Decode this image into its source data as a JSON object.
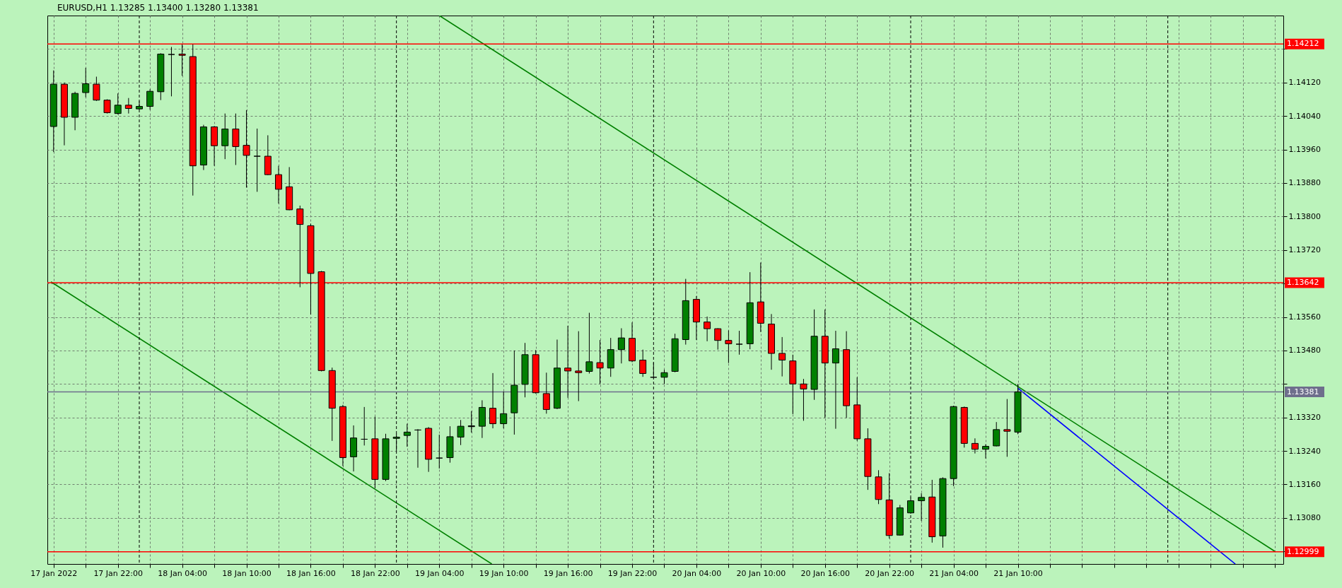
{
  "chart_data": {
    "type": "candlestick",
    "title": "EURUSD,H1  1.13285 1.13400 1.13280 1.13381",
    "x": [
      "2022-01-17T16:00",
      "2022-01-17T17:00",
      "2022-01-17T18:00",
      "2022-01-17T19:00",
      "2022-01-17T20:00",
      "2022-01-17T21:00",
      "2022-01-17T22:00",
      "2022-01-17T23:00",
      "2022-01-18T00:00",
      "2022-01-18T01:00",
      "2022-01-18T02:00",
      "2022-01-18T03:00",
      "2022-01-18T04:00",
      "2022-01-18T05:00",
      "2022-01-18T06:00",
      "2022-01-18T07:00",
      "2022-01-18T08:00",
      "2022-01-18T09:00",
      "2022-01-18T10:00",
      "2022-01-18T11:00",
      "2022-01-18T12:00",
      "2022-01-18T13:00",
      "2022-01-18T14:00",
      "2022-01-18T15:00",
      "2022-01-18T16:00",
      "2022-01-18T17:00",
      "2022-01-18T18:00",
      "2022-01-18T19:00",
      "2022-01-18T20:00",
      "2022-01-18T21:00",
      "2022-01-18T22:00",
      "2022-01-18T23:00",
      "2022-01-19T00:00",
      "2022-01-19T01:00",
      "2022-01-19T02:00",
      "2022-01-19T03:00",
      "2022-01-19T04:00",
      "2022-01-19T05:00",
      "2022-01-19T06:00",
      "2022-01-19T07:00",
      "2022-01-19T08:00",
      "2022-01-19T09:00",
      "2022-01-19T10:00",
      "2022-01-19T11:00",
      "2022-01-19T12:00",
      "2022-01-19T13:00",
      "2022-01-19T14:00",
      "2022-01-19T15:00",
      "2022-01-19T16:00",
      "2022-01-19T17:00",
      "2022-01-19T18:00",
      "2022-01-19T19:00",
      "2022-01-19T20:00",
      "2022-01-19T21:00",
      "2022-01-19T22:00",
      "2022-01-19T23:00",
      "2022-01-20T00:00",
      "2022-01-20T01:00",
      "2022-01-20T02:00",
      "2022-01-20T03:00",
      "2022-01-20T04:00",
      "2022-01-20T05:00",
      "2022-01-20T06:00",
      "2022-01-20T07:00",
      "2022-01-20T08:00",
      "2022-01-20T09:00",
      "2022-01-20T10:00",
      "2022-01-20T11:00",
      "2022-01-20T12:00",
      "2022-01-20T13:00",
      "2022-01-20T14:00",
      "2022-01-20T15:00",
      "2022-01-20T16:00",
      "2022-01-20T17:00",
      "2022-01-20T18:00",
      "2022-01-20T19:00",
      "2022-01-20T20:00",
      "2022-01-20T21:00",
      "2022-01-20T22:00",
      "2022-01-20T23:00",
      "2022-01-21T00:00",
      "2022-01-21T01:00",
      "2022-01-21T02:00",
      "2022-01-21T03:00",
      "2022-01-21T04:00",
      "2022-01-21T05:00",
      "2022-01-21T06:00",
      "2022-01-21T07:00",
      "2022-01-21T08:00",
      "2022-01-21T09:00",
      "2022-01-21T10:00"
    ],
    "ohlc": [
      [
        1.14015,
        1.14149,
        1.13954,
        1.14116
      ],
      [
        1.14116,
        1.1412,
        1.1397,
        1.14037
      ],
      [
        1.14037,
        1.14098,
        1.14006,
        1.14094
      ],
      [
        1.14096,
        1.14155,
        1.14085,
        1.14117
      ],
      [
        1.14116,
        1.14134,
        1.14076,
        1.14078
      ],
      [
        1.14078,
        1.1408,
        1.14046,
        1.14048
      ],
      [
        1.14046,
        1.14094,
        1.14044,
        1.14066
      ],
      [
        1.14066,
        1.14083,
        1.14046,
        1.14058
      ],
      [
        1.14057,
        1.14075,
        1.14055,
        1.14063
      ],
      [
        1.14063,
        1.14104,
        1.14055,
        1.14099
      ],
      [
        1.14098,
        1.1419,
        1.14078,
        1.14188
      ],
      [
        1.14187,
        1.14205,
        1.14087,
        1.14187
      ],
      [
        1.14188,
        1.14211,
        1.14136,
        1.14185
      ],
      [
        1.14182,
        1.14211,
        1.1385,
        1.13921
      ],
      [
        1.13923,
        1.14019,
        1.13911,
        1.14014
      ],
      [
        1.14014,
        1.14016,
        1.13921,
        1.13969
      ],
      [
        1.13969,
        1.14046,
        1.13937,
        1.14009
      ],
      [
        1.14009,
        1.14046,
        1.13923,
        1.13967
      ],
      [
        1.1397,
        1.14054,
        1.13869,
        1.13946
      ],
      [
        1.13944,
        1.1401,
        1.13859,
        1.13944
      ],
      [
        1.13944,
        1.13994,
        1.13899,
        1.139
      ],
      [
        1.139,
        1.13921,
        1.13831,
        1.13865
      ],
      [
        1.13871,
        1.13918,
        1.13815,
        1.13816
      ],
      [
        1.13818,
        1.13826,
        1.13631,
        1.13781
      ],
      [
        1.13778,
        1.13783,
        1.13566,
        1.13664
      ],
      [
        1.13668,
        1.1367,
        1.1343,
        1.13432
      ],
      [
        1.13432,
        1.13439,
        1.13264,
        1.13342
      ],
      [
        1.13346,
        1.1335,
        1.13204,
        1.13224
      ],
      [
        1.13226,
        1.13301,
        1.13191,
        1.13271
      ],
      [
        1.13268,
        1.13345,
        1.13253,
        1.13268
      ],
      [
        1.13269,
        1.13322,
        1.13151,
        1.13172
      ],
      [
        1.13172,
        1.13281,
        1.13168,
        1.13269
      ],
      [
        1.1327,
        1.13281,
        1.1324,
        1.13273
      ],
      [
        1.13277,
        1.13305,
        1.1325,
        1.13285
      ],
      [
        1.1329,
        1.13292,
        1.132,
        1.1329
      ],
      [
        1.13294,
        1.13297,
        1.1319,
        1.1322
      ],
      [
        1.13223,
        1.13279,
        1.13198,
        1.13223
      ],
      [
        1.13224,
        1.13299,
        1.13212,
        1.13274
      ],
      [
        1.13273,
        1.13314,
        1.13254,
        1.13299
      ],
      [
        1.13298,
        1.13335,
        1.13284,
        1.133
      ],
      [
        1.13299,
        1.13361,
        1.13271,
        1.13344
      ],
      [
        1.13342,
        1.13426,
        1.13294,
        1.13305
      ],
      [
        1.13305,
        1.13382,
        1.13294,
        1.13329
      ],
      [
        1.13331,
        1.1348,
        1.13279,
        1.13397
      ],
      [
        1.13399,
        1.13498,
        1.13368,
        1.1347
      ],
      [
        1.1347,
        1.13481,
        1.13377,
        1.13379
      ],
      [
        1.13377,
        1.13427,
        1.13329,
        1.13339
      ],
      [
        1.13342,
        1.13506,
        1.1334,
        1.13438
      ],
      [
        1.13438,
        1.13539,
        1.13367,
        1.13431
      ],
      [
        1.13431,
        1.13526,
        1.13359,
        1.13427
      ],
      [
        1.1343,
        1.1357,
        1.13425,
        1.13453
      ],
      [
        1.13451,
        1.13505,
        1.134,
        1.13438
      ],
      [
        1.13438,
        1.1351,
        1.13417,
        1.13482
      ],
      [
        1.13482,
        1.13533,
        1.13449,
        1.1351
      ],
      [
        1.13509,
        1.13547,
        1.13452,
        1.13455
      ],
      [
        1.13457,
        1.13482,
        1.13417,
        1.13425
      ],
      [
        1.13416,
        1.13451,
        1.13415,
        1.13416
      ],
      [
        1.13416,
        1.13434,
        1.134,
        1.13427
      ],
      [
        1.1343,
        1.1352,
        1.13428,
        1.13508
      ],
      [
        1.13506,
        1.13651,
        1.13494,
        1.13599
      ],
      [
        1.13602,
        1.1361,
        1.13505,
        1.13548
      ],
      [
        1.13548,
        1.13561,
        1.13502,
        1.13532
      ],
      [
        1.13532,
        1.13533,
        1.13482,
        1.13504
      ],
      [
        1.13504,
        1.13528,
        1.1345,
        1.13496
      ],
      [
        1.13495,
        1.13527,
        1.1347,
        1.13495
      ],
      [
        1.13496,
        1.13667,
        1.13483,
        1.13594
      ],
      [
        1.13596,
        1.1369,
        1.13524,
        1.13545
      ],
      [
        1.13543,
        1.13567,
        1.13434,
        1.13473
      ],
      [
        1.13473,
        1.13512,
        1.13418,
        1.13457
      ],
      [
        1.13455,
        1.1347,
        1.13328,
        1.134
      ],
      [
        1.134,
        1.13412,
        1.13312,
        1.13388
      ],
      [
        1.13387,
        1.13578,
        1.13362,
        1.13514
      ],
      [
        1.13514,
        1.13578,
        1.13319,
        1.1345
      ],
      [
        1.1345,
        1.13527,
        1.13293,
        1.13484
      ],
      [
        1.13482,
        1.13526,
        1.13319,
        1.13348
      ],
      [
        1.1335,
        1.13416,
        1.13264,
        1.13269
      ],
      [
        1.13269,
        1.13294,
        1.13147,
        1.13179
      ],
      [
        1.13178,
        1.13194,
        1.13113,
        1.13124
      ],
      [
        1.13123,
        1.13187,
        1.13031,
        1.13038
      ],
      [
        1.13039,
        1.13111,
        1.13038,
        1.13104
      ],
      [
        1.13092,
        1.13128,
        1.1309,
        1.13121
      ],
      [
        1.13121,
        1.13139,
        1.13073,
        1.13129
      ],
      [
        1.1313,
        1.13171,
        1.13021,
        1.13035
      ],
      [
        1.13037,
        1.13177,
        1.13009,
        1.13174
      ],
      [
        1.13174,
        1.13348,
        1.13156,
        1.13346
      ],
      [
        1.13344,
        1.13346,
        1.13248,
        1.13258
      ],
      [
        1.13258,
        1.1327,
        1.13234,
        1.13244
      ],
      [
        1.13244,
        1.13256,
        1.13222,
        1.13251
      ],
      [
        1.13252,
        1.13309,
        1.13251,
        1.13291
      ],
      [
        1.13291,
        1.13364,
        1.13226,
        1.13287
      ],
      [
        1.13285,
        1.134,
        1.1328,
        1.13381
      ]
    ],
    "colors": [
      "#008000",
      "#ff0000",
      "#008000",
      "#008000",
      "#ff0000",
      "#ff0000",
      "#008000",
      "#ff0000",
      "#008000",
      "#008000",
      "#008000",
      "#000000",
      "#ff0000",
      "#ff0000",
      "#008000",
      "#ff0000",
      "#008000",
      "#ff0000",
      "#ff0000",
      "#000000",
      "#ff0000",
      "#ff0000",
      "#ff0000",
      "#ff0000",
      "#ff0000",
      "#ff0000",
      "#ff0000",
      "#ff0000",
      "#008000",
      "#000000",
      "#ff0000",
      "#008000",
      "#008000",
      "#008000",
      "#000000",
      "#ff0000",
      "#000000",
      "#008000",
      "#008000",
      "#000000",
      "#008000",
      "#ff0000",
      "#008000",
      "#008000",
      "#008000",
      "#ff0000",
      "#ff0000",
      "#008000",
      "#ff0000",
      "#ff0000",
      "#008000",
      "#ff0000",
      "#008000",
      "#008000",
      "#ff0000",
      "#ff0000",
      "#000000",
      "#008000",
      "#008000",
      "#008000",
      "#ff0000",
      "#ff0000",
      "#ff0000",
      "#ff0000",
      "#000000",
      "#008000",
      "#ff0000",
      "#ff0000",
      "#ff0000",
      "#ff0000",
      "#ff0000",
      "#008000",
      "#ff0000",
      "#008000",
      "#ff0000",
      "#ff0000",
      "#ff0000",
      "#ff0000",
      "#ff0000",
      "#008000",
      "#008000",
      "#008000",
      "#ff0000",
      "#008000",
      "#008000",
      "#ff0000",
      "#ff0000",
      "#008000",
      "#008000",
      "#ff0000",
      "#008000"
    ],
    "series": [
      {
        "type": "line",
        "x": [
          "2022-01-19T04:00",
          "2022-01-22T10:00"
        ],
        "values": [
          1.1428,
          1.13
        ],
        "color": "#008000"
      },
      {
        "type": "line",
        "x": [
          "2022-01-17T15:45",
          "2022-01-19T08:54"
        ],
        "values": [
          1.13644,
          1.1297
        ],
        "color": "#008000"
      },
      {
        "type": "line",
        "x": [
          "2022-01-21T10:00",
          "2022-01-22T06:18"
        ],
        "values": [
          1.1339,
          1.1297
        ],
        "color": "#0000ff"
      }
    ],
    "ref_lines": [
      {
        "axis": "y",
        "value": 1.14212,
        "label": "1.14212",
        "color": "#ff0000"
      },
      {
        "axis": "y",
        "value": 1.13642,
        "label": "1.13642",
        "color": "#ff0000"
      },
      {
        "axis": "y",
        "value": 1.12999,
        "label": "1.12999",
        "color": "#ff0000"
      },
      {
        "axis": "y",
        "value": 1.13381,
        "label": "1.13381",
        "color": "#6e6e8c"
      },
      {
        "axis": "x",
        "value": "2022-01-18T00:00",
        "color": "#000000",
        "line_style": "dashed"
      },
      {
        "axis": "x",
        "value": "2022-01-19T00:00",
        "color": "#000000",
        "line_style": "dashed"
      },
      {
        "axis": "x",
        "value": "2022-01-20T00:00",
        "color": "#000000",
        "line_style": "dashed"
      },
      {
        "axis": "x",
        "value": "2022-01-21T00:00",
        "color": "#000000",
        "line_style": "dashed"
      },
      {
        "axis": "x",
        "value": "2022-01-22T00:00",
        "color": "#000000",
        "line_style": "dashed"
      }
    ],
    "xlim": [
      "2022-01-17T15:45",
      "2022-01-22T10:27"
    ],
    "xticks": [
      {
        "value": "2022-01-17T16:00",
        "label": "17 Jan 2022"
      },
      {
        "value": "2022-01-17T19:00",
        "label": null
      },
      {
        "value": "2022-01-17T22:00",
        "label": "17 Jan 22:00"
      },
      {
        "value": "2022-01-18T01:00",
        "label": null
      },
      {
        "value": "2022-01-18T04:00",
        "label": "18 Jan 04:00"
      },
      {
        "value": "2022-01-18T07:00",
        "label": null
      },
      {
        "value": "2022-01-18T10:00",
        "label": "18 Jan 10:00"
      },
      {
        "value": "2022-01-18T13:00",
        "label": null
      },
      {
        "value": "2022-01-18T16:00",
        "label": "18 Jan 16:00"
      },
      {
        "value": "2022-01-18T19:00",
        "label": null
      },
      {
        "value": "2022-01-18T22:00",
        "label": "18 Jan 22:00"
      },
      {
        "value": "2022-01-19T01:00",
        "label": null
      },
      {
        "value": "2022-01-19T04:00",
        "label": "19 Jan 04:00"
      },
      {
        "value": "2022-01-19T07:00",
        "label": null
      },
      {
        "value": "2022-01-19T10:00",
        "label": "19 Jan 10:00"
      },
      {
        "value": "2022-01-19T13:00",
        "label": null
      },
      {
        "value": "2022-01-19T16:00",
        "label": "19 Jan 16:00"
      },
      {
        "value": "2022-01-19T19:00",
        "label": null
      },
      {
        "value": "2022-01-19T22:00",
        "label": "19 Jan 22:00"
      },
      {
        "value": "2022-01-20T01:00",
        "label": null
      },
      {
        "value": "2022-01-20T04:00",
        "label": "20 Jan 04:00"
      },
      {
        "value": "2022-01-20T07:00",
        "label": null
      },
      {
        "value": "2022-01-20T10:00",
        "label": "20 Jan 10:00"
      },
      {
        "value": "2022-01-20T13:00",
        "label": null
      },
      {
        "value": "2022-01-20T16:00",
        "label": "20 Jan 16:00"
      },
      {
        "value": "2022-01-20T19:00",
        "label": null
      },
      {
        "value": "2022-01-20T22:00",
        "label": "20 Jan 22:00"
      },
      {
        "value": "2022-01-21T01:00",
        "label": null
      },
      {
        "value": "2022-01-21T04:00",
        "label": "21 Jan 04:00"
      },
      {
        "value": "2022-01-21T07:00",
        "label": null
      },
      {
        "value": "2022-01-21T10:00",
        "label": "21 Jan 10:00"
      },
      {
        "value": "2022-01-21T13:00",
        "label": null
      },
      {
        "value": "2022-01-21T16:00",
        "label": null
      },
      {
        "value": "2022-01-21T19:00",
        "label": null
      },
      {
        "value": "2022-01-21T22:00",
        "label": null
      },
      {
        "value": "2022-01-22T01:00",
        "label": null
      },
      {
        "value": "2022-01-22T04:00",
        "label": null
      },
      {
        "value": "2022-01-22T07:00",
        "label": null
      },
      {
        "value": "2022-01-22T10:00",
        "label": null
      }
    ],
    "ylim": [
      1.1297,
      1.1428
    ],
    "yticks": [
      {
        "value": 1.13,
        "label": null
      },
      {
        "value": 1.1308,
        "label": "1.13080"
      },
      {
        "value": 1.1316,
        "label": "1.13160"
      },
      {
        "value": 1.1324,
        "label": "1.13240"
      },
      {
        "value": 1.1332,
        "label": "1.13320"
      },
      {
        "value": 1.134,
        "label": null
      },
      {
        "value": 1.1348,
        "label": "1.13480"
      },
      {
        "value": 1.1356,
        "label": "1.13560"
      },
      {
        "value": 1.1364,
        "label": null
      },
      {
        "value": 1.1372,
        "label": "1.13720"
      },
      {
        "value": 1.138,
        "label": "1.13800"
      },
      {
        "value": 1.1388,
        "label": "1.13880"
      },
      {
        "value": 1.1396,
        "label": "1.13960"
      },
      {
        "value": 1.1404,
        "label": "1.14040"
      },
      {
        "value": 1.1412,
        "label": "1.14120"
      },
      {
        "value": 1.142,
        "label": null
      }
    ],
    "grid": true
  }
}
